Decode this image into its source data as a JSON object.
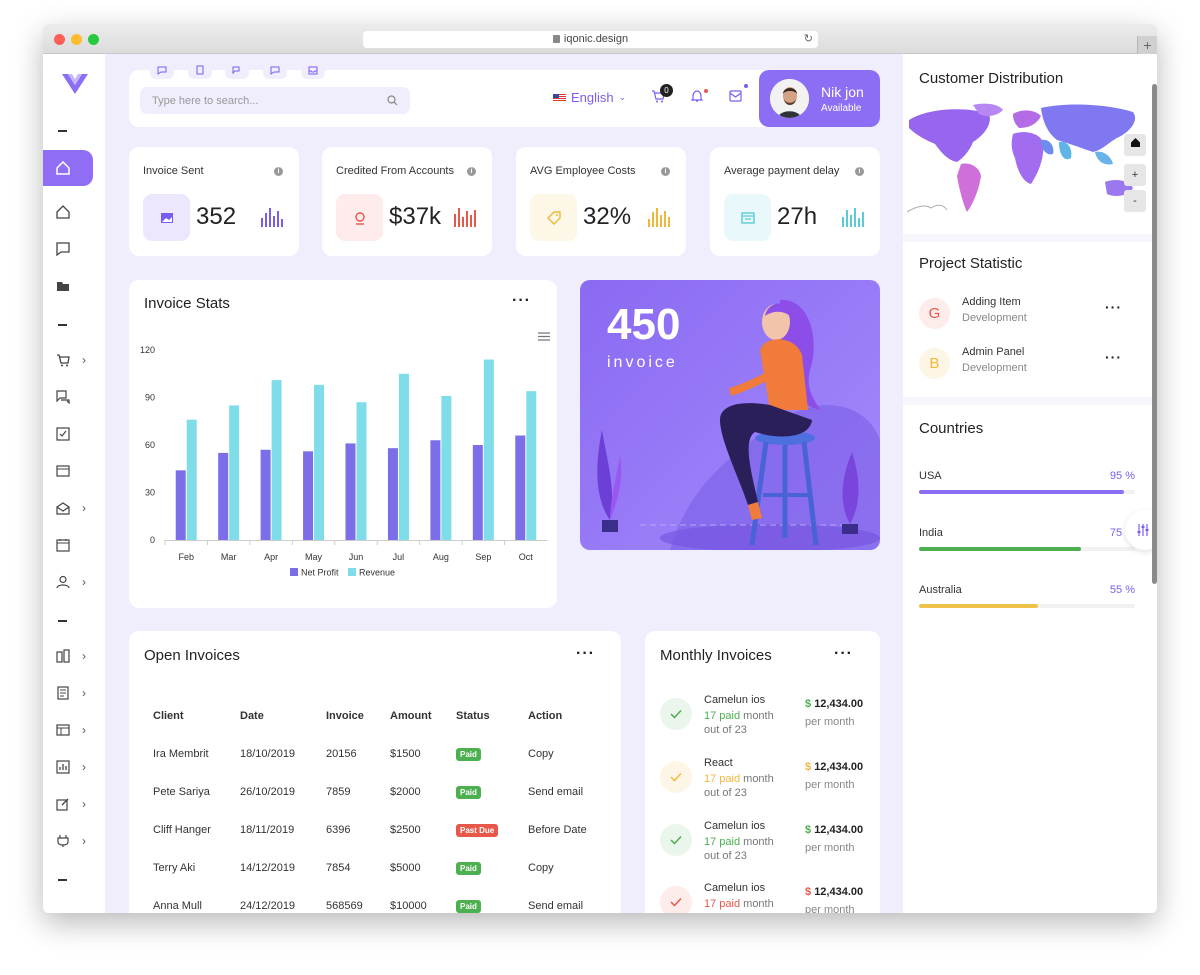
{
  "browser": {
    "url": "iqonic.design"
  },
  "search": {
    "placeholder": "Type here to search..."
  },
  "header": {
    "language": "English",
    "cart_count": "0"
  },
  "profile": {
    "name": "Nik jon",
    "status": "Available"
  },
  "stats": [
    {
      "title": "Invoice Sent",
      "value": "352",
      "accent": "#7b5cf2"
    },
    {
      "title": "Credited From Accounts",
      "value": "$37k",
      "accent": "#e8584a"
    },
    {
      "title": "AVG Employee Costs",
      "value": "32%",
      "accent": "#f0b83b"
    },
    {
      "title": "Average payment delay",
      "value": "27h",
      "accent": "#5bcbd6"
    }
  ],
  "invoice_stats": {
    "title": "Invoice Stats"
  },
  "chart_data": {
    "type": "bar",
    "categories": [
      "Feb",
      "Mar",
      "Apr",
      "May",
      "Jun",
      "Jul",
      "Aug",
      "Sep",
      "Oct"
    ],
    "series": [
      {
        "name": "Net Profit",
        "values": [
          44,
          55,
          57,
          56,
          61,
          58,
          63,
          60,
          66
        ],
        "color": "#7b6ee8"
      },
      {
        "name": "Revenue",
        "values": [
          76,
          85,
          101,
          98,
          87,
          105,
          91,
          114,
          94
        ],
        "color": "#7fdde9"
      }
    ],
    "yticks": [
      "0",
      "30",
      "60",
      "90",
      "120"
    ],
    "ylim": [
      0,
      120
    ],
    "legend": "bottom"
  },
  "promo": {
    "number": "450",
    "label": "invoice"
  },
  "open_invoices": {
    "title": "Open Invoices",
    "columns": [
      "Client",
      "Date",
      "Invoice",
      "Amount",
      "Status",
      "Action"
    ],
    "rows": [
      {
        "client": "Ira Membrit",
        "date": "18/10/2019",
        "invoice": "20156",
        "amount": "$1500",
        "status": "Paid",
        "action": "Copy"
      },
      {
        "client": "Pete Sariya",
        "date": "26/10/2019",
        "invoice": "7859",
        "amount": "$2000",
        "status": "Paid",
        "action": "Send email"
      },
      {
        "client": "Cliff Hanger",
        "date": "18/11/2019",
        "invoice": "6396",
        "amount": "$2500",
        "status": "Past Due",
        "action": "Before Date"
      },
      {
        "client": "Terry Aki",
        "date": "14/12/2019",
        "invoice": "7854",
        "amount": "$5000",
        "status": "Paid",
        "action": "Copy"
      },
      {
        "client": "Anna Mull",
        "date": "24/12/2019",
        "invoice": "568569",
        "amount": "$10000",
        "status": "Paid",
        "action": "Send email"
      }
    ]
  },
  "monthly_invoices": {
    "title": "Monthly Invoices",
    "items": [
      {
        "name": "Camelun ios",
        "paid": "17 paid",
        "rest": "month out of 23",
        "amount": "12,434.00",
        "per": "per month",
        "color": "#4caf50"
      },
      {
        "name": "React",
        "paid": "17 paid",
        "rest": "month out of 23",
        "amount": "12,434.00",
        "per": "per month",
        "color": "#f0b83b"
      },
      {
        "name": "Camelun ios",
        "paid": "17 paid",
        "rest": "month out of 23",
        "amount": "12,434.00",
        "per": "per month",
        "color": "#4caf50"
      },
      {
        "name": "Camelun ios",
        "paid": "17 paid",
        "rest": "month",
        "amount": "12,434.00",
        "per": "per month",
        "color": "#e8584a"
      }
    ]
  },
  "customer_distribution": {
    "title": "Customer Distribution",
    "zoom_in": "+",
    "zoom_out": "-"
  },
  "project_statistic": {
    "title": "Project Statistic",
    "items": [
      {
        "letter": "G",
        "title": "Adding Item",
        "sub": "Development",
        "color": "#e8584a"
      },
      {
        "letter": "B",
        "title": "Admin Panel",
        "sub": "Development",
        "color": "#f0b83b"
      }
    ]
  },
  "countries": {
    "title": "Countries",
    "items": [
      {
        "name": "USA",
        "pct": "95 %",
        "value": 0.95,
        "color": "#8c6ef5"
      },
      {
        "name": "India",
        "pct": "75 %",
        "value": 0.75,
        "color": "#4caf50"
      },
      {
        "name": "Australia",
        "pct": "55 %",
        "value": 0.55,
        "color": "#f0c24a"
      }
    ]
  }
}
